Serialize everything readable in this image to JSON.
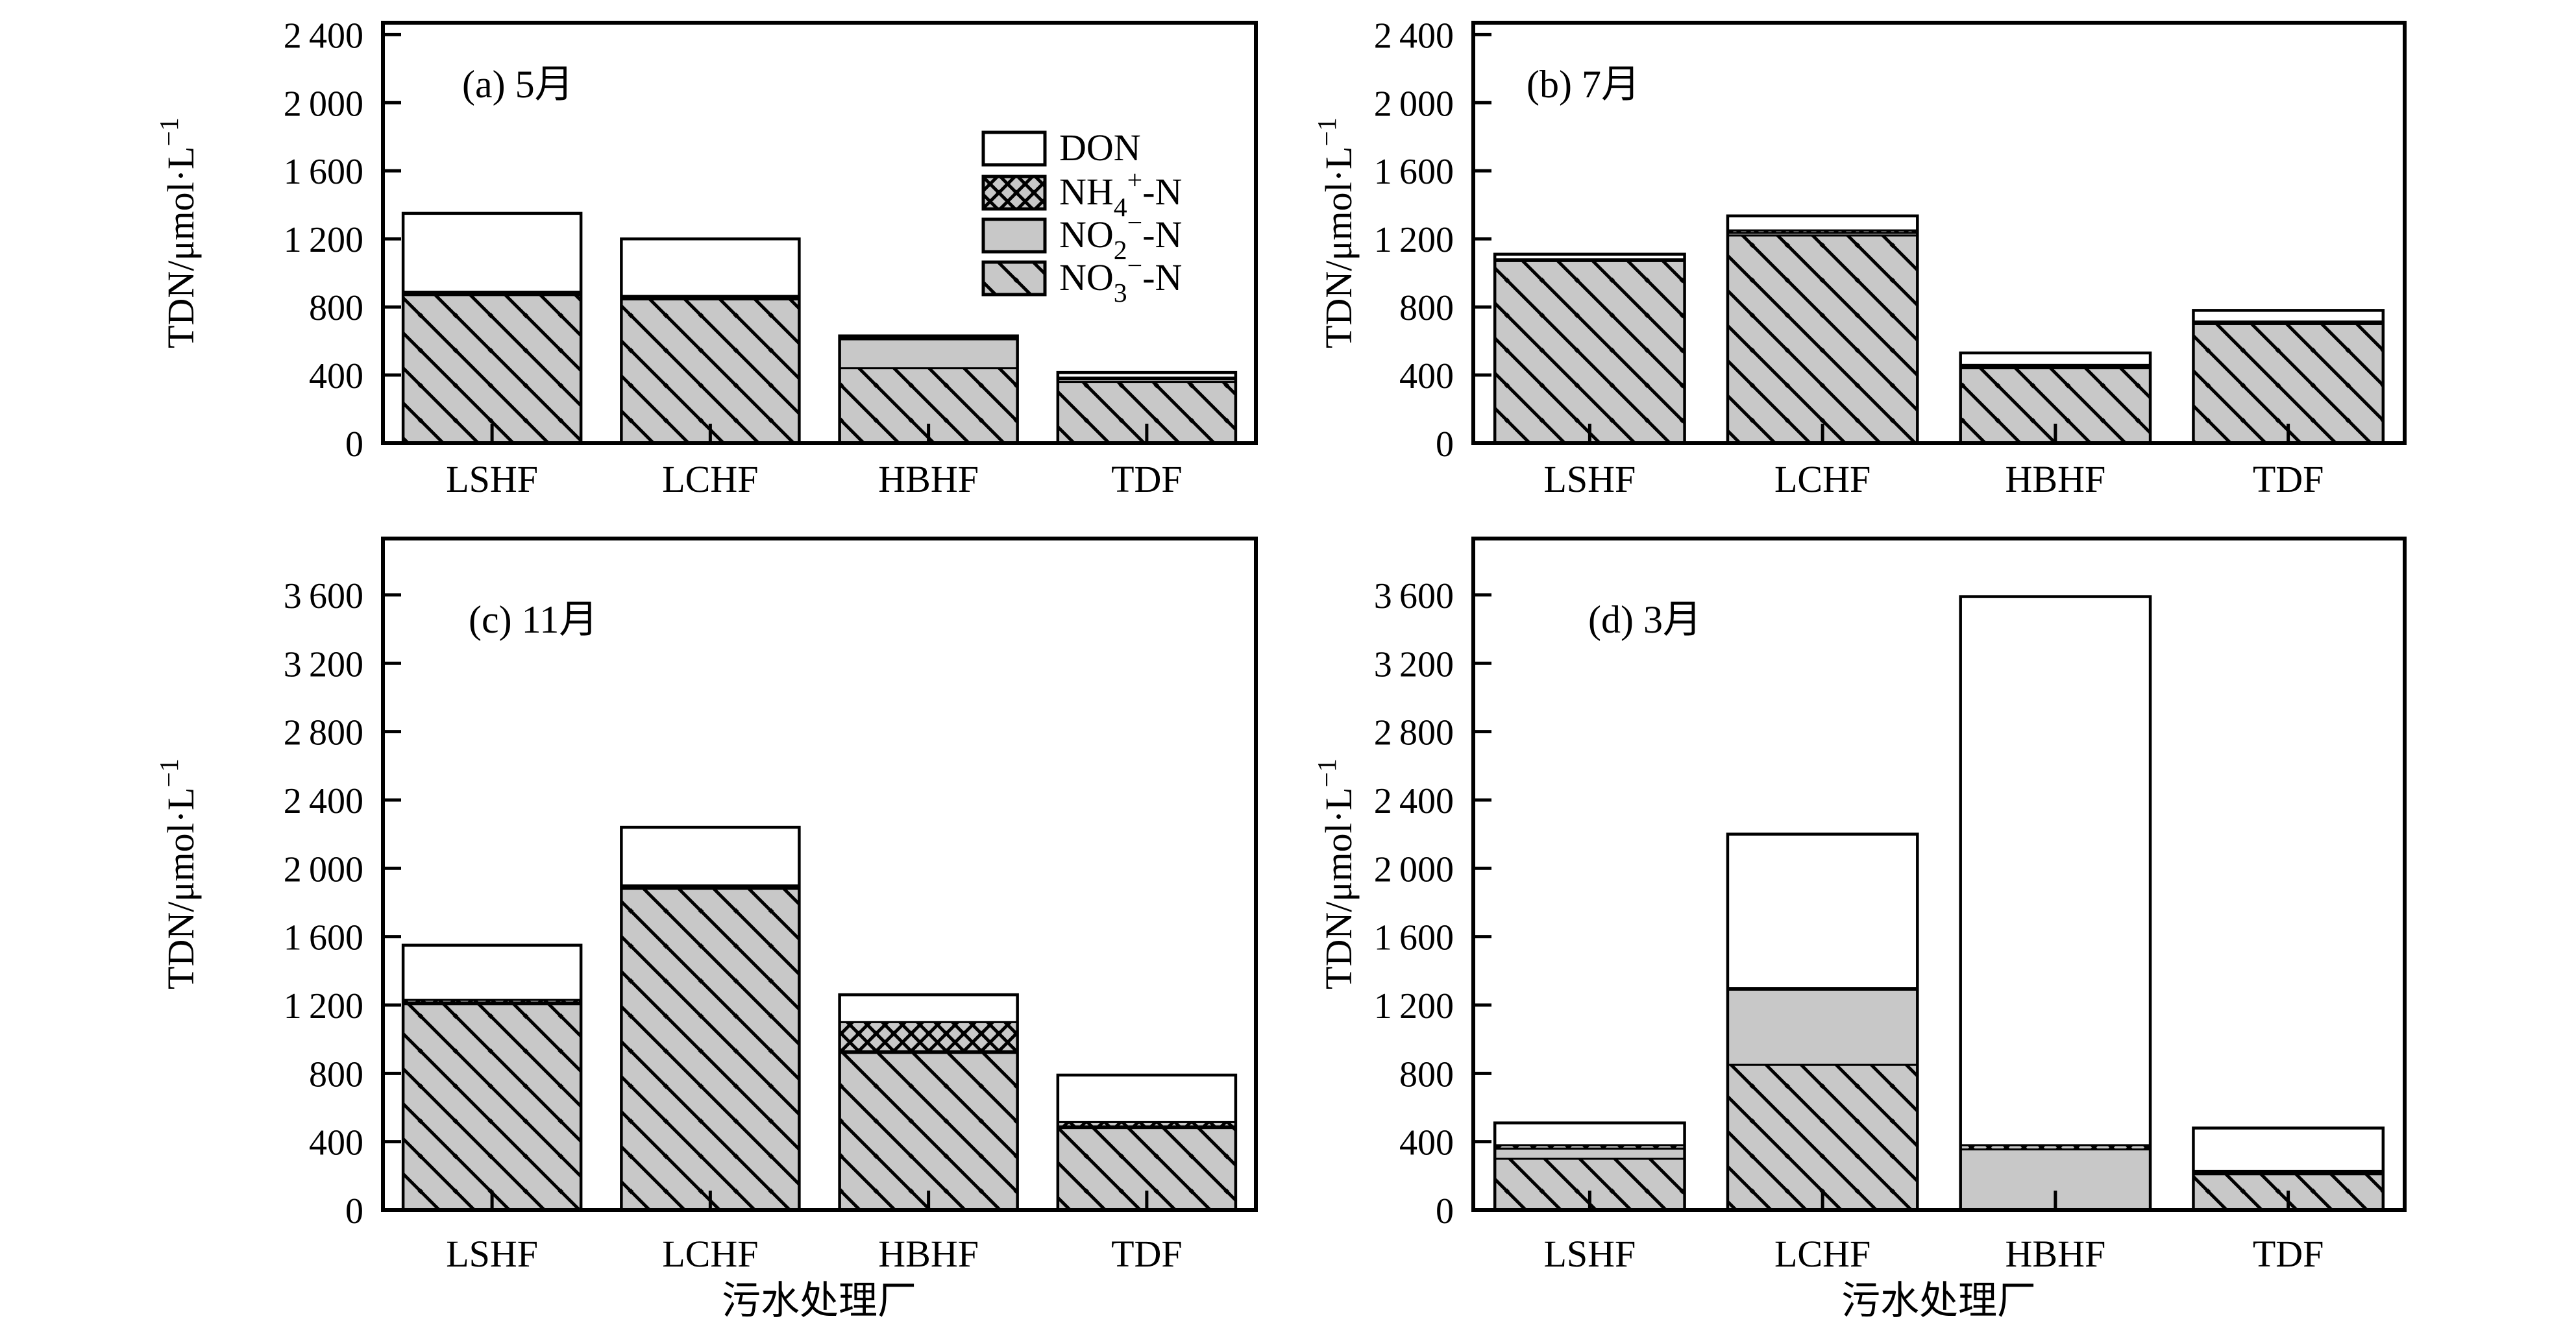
{
  "figure": {
    "x_axis_title": "污水处理厂",
    "y_axis_title_parts": [
      {
        "t": "TDN/μmol·L"
      },
      {
        "t": "−1",
        "pos": "sup"
      }
    ],
    "categories": [
      "LSHF",
      "LCHF",
      "HBHF",
      "TDF"
    ],
    "legend": {
      "items": [
        {
          "key": "DON",
          "swatch": "don-swatch",
          "parts": [
            {
              "t": "DON"
            }
          ]
        },
        {
          "key": "NH4",
          "swatch": "nh4-swatch",
          "parts": [
            {
              "t": "NH"
            },
            {
              "t": "4",
              "pos": "sub"
            },
            {
              "t": "+",
              "pos": "sup"
            },
            {
              "t": "-N"
            }
          ]
        },
        {
          "key": "NO2",
          "swatch": "no2-swatch",
          "parts": [
            {
              "t": "NO"
            },
            {
              "t": "2",
              "pos": "sub"
            },
            {
              "t": "−",
              "pos": "sup"
            },
            {
              "t": "-N"
            }
          ]
        },
        {
          "key": "NO3",
          "swatch": "no3-swatch",
          "parts": [
            {
              "t": "NO"
            },
            {
              "t": "3",
              "pos": "sub"
            },
            {
              "t": "−",
              "pos": "sup"
            },
            {
              "t": "-N"
            }
          ]
        }
      ]
    },
    "colors": {
      "bar_gray": "#c8c8c8",
      "ink": "#000000",
      "background": "#ffffff"
    }
  },
  "chart_data": [
    {
      "type": "bar",
      "panel": "a",
      "title_tag": "(a) 5月",
      "stack_order": [
        "NO3",
        "NO2",
        "NH4",
        "DON"
      ],
      "categories": [
        "LSHF",
        "LCHF",
        "HBHF",
        "TDF"
      ],
      "ylim": [
        0,
        2470
      ],
      "tick_step": 400,
      "tick_max": 2400,
      "ylabel": "TDN/μmol·L−1",
      "series": [
        {
          "name": "NO3-N",
          "values": [
            870,
            845,
            440,
            360
          ]
        },
        {
          "name": "NO2-N",
          "values": [
            10,
            10,
            170,
            15
          ]
        },
        {
          "name": "NH4-N",
          "values": [
            10,
            10,
            10,
            10
          ]
        },
        {
          "name": "DON",
          "values": [
            460,
            335,
            10,
            30
          ]
        }
      ],
      "totals": [
        1350,
        1200,
        630,
        415
      ]
    },
    {
      "type": "bar",
      "panel": "b",
      "title_tag": "(b) 7月",
      "stack_order": [
        "NO3",
        "NO2",
        "NH4",
        "DON"
      ],
      "categories": [
        "LSHF",
        "LCHF",
        "HBHF",
        "TDF"
      ],
      "ylim": [
        0,
        2470
      ],
      "tick_step": 400,
      "tick_max": 2400,
      "ylabel": "TDN/μmol·L−1",
      "series": [
        {
          "name": "NO3-N",
          "values": [
            1070,
            1220,
            440,
            700
          ]
        },
        {
          "name": "NO2-N",
          "values": [
            5,
            15,
            10,
            10
          ]
        },
        {
          "name": "NH4-N",
          "values": [
            5,
            15,
            10,
            5
          ]
        },
        {
          "name": "DON",
          "values": [
            30,
            85,
            70,
            65
          ]
        }
      ],
      "totals": [
        1110,
        1335,
        530,
        780
      ]
    },
    {
      "type": "bar",
      "panel": "c",
      "title_tag": "(c) 11月",
      "stack_order": [
        "NO3",
        "NO2",
        "NH4",
        "DON"
      ],
      "categories": [
        "LSHF",
        "LCHF",
        "HBHF",
        "TDF"
      ],
      "ylim": [
        0,
        3930
      ],
      "tick_step": 400,
      "tick_max": 3600,
      "ylabel": "TDN/μmol·L−1",
      "series": [
        {
          "name": "NO3-N",
          "values": [
            1205,
            1880,
            920,
            480
          ]
        },
        {
          "name": "NO2-N",
          "values": [
            10,
            10,
            10,
            10
          ]
        },
        {
          "name": "NH4-N",
          "values": [
            15,
            10,
            170,
            25
          ]
        },
        {
          "name": "DON",
          "values": [
            320,
            340,
            160,
            275
          ]
        }
      ],
      "totals": [
        1550,
        2240,
        1260,
        790
      ]
    },
    {
      "type": "bar",
      "panel": "d",
      "title_tag": "(d) 3月",
      "stack_order": [
        "NO3",
        "NO2",
        "NH4",
        "DON"
      ],
      "categories": [
        "LSHF",
        "LCHF",
        "HBHF",
        "TDF"
      ],
      "ylim": [
        0,
        3930
      ],
      "tick_step": 400,
      "tick_max": 3600,
      "ylabel": "TDN/μmol·L−1",
      "series": [
        {
          "name": "NO3-N",
          "values": [
            300,
            850,
            0,
            210
          ]
        },
        {
          "name": "NO2-N",
          "values": [
            60,
            440,
            355,
            10
          ]
        },
        {
          "name": "NH4-N",
          "values": [
            20,
            10,
            25,
            10
          ]
        },
        {
          "name": "DON",
          "values": [
            130,
            900,
            3210,
            250
          ]
        }
      ],
      "totals": [
        510,
        2200,
        3590,
        480
      ]
    }
  ]
}
